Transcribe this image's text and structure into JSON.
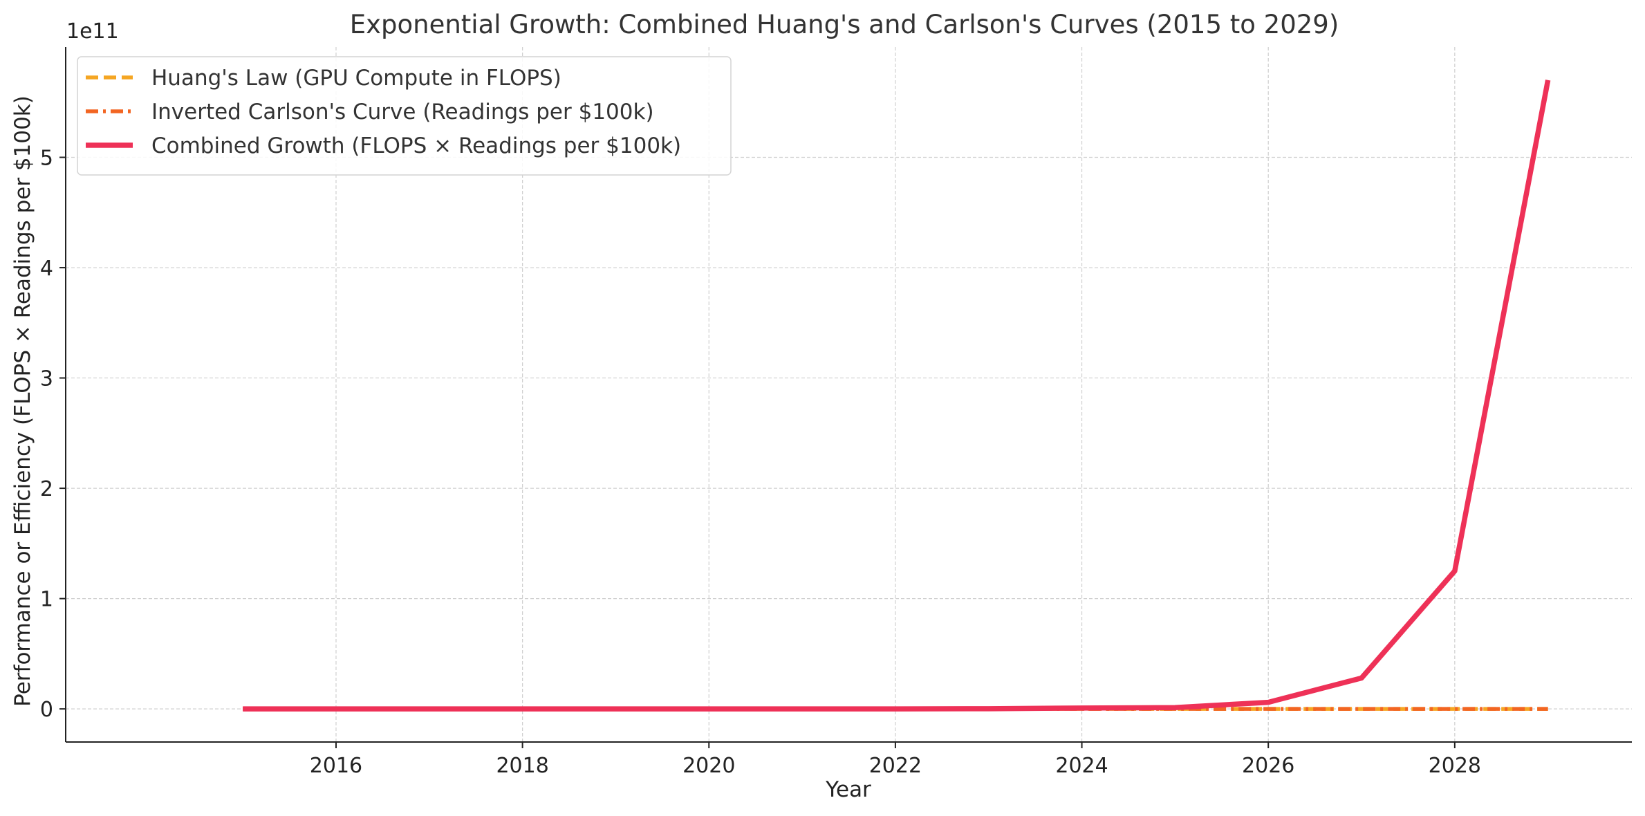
{
  "chart_data": {
    "type": "line",
    "title": "Exponential Growth: Combined Huang's and Carlson's Curves (2015 to 2029)",
    "xlabel": "Year",
    "ylabel": "Performance or Efficiency (FLOPS × Readings per $100k)",
    "y_offset_label": "1e11",
    "y_scale_factor": 100000000000,
    "xlim": [
      2013.1,
      2029.9
    ],
    "ylim": [
      -0.3,
      6.0
    ],
    "x_ticks": [
      2016,
      2018,
      2020,
      2022,
      2024,
      2026,
      2028
    ],
    "x_tick_labels": [
      "2016",
      "2018",
      "2020",
      "2022",
      "2024",
      "2026",
      "2028"
    ],
    "y_ticks": [
      0,
      1,
      2,
      3,
      4,
      5
    ],
    "y_tick_labels": [
      "0",
      "1",
      "2",
      "3",
      "4",
      "5"
    ],
    "grid": true,
    "legend_position": "top-left",
    "x": [
      2015,
      2016,
      2017,
      2018,
      2019,
      2020,
      2021,
      2022,
      2023,
      2024,
      2025,
      2026,
      2027,
      2028,
      2029
    ],
    "series": [
      {
        "name": "Huang's Law (GPU Compute in FLOPS)",
        "color": "#f5a623",
        "style": "dashed",
        "values": [
          0,
          0,
          0,
          0,
          0,
          0,
          0,
          0,
          0,
          0,
          0,
          0,
          0,
          0,
          0
        ]
      },
      {
        "name": "Inverted Carlson's Curve (Readings per $100k)",
        "color": "#f26522",
        "style": "dashdot",
        "values": [
          0,
          0,
          0,
          0,
          0,
          0,
          0,
          0,
          0,
          0,
          0,
          0,
          0,
          0,
          0
        ]
      },
      {
        "name": "Combined Growth (FLOPS × Readings per $100k)",
        "color": "#ee3157",
        "style": "solid",
        "values": [
          0,
          0,
          0,
          0,
          0,
          0,
          0,
          0.0003,
          0.002,
          0.008,
          0.012,
          0.06,
          0.28,
          1.25,
          5.7
        ]
      }
    ]
  }
}
